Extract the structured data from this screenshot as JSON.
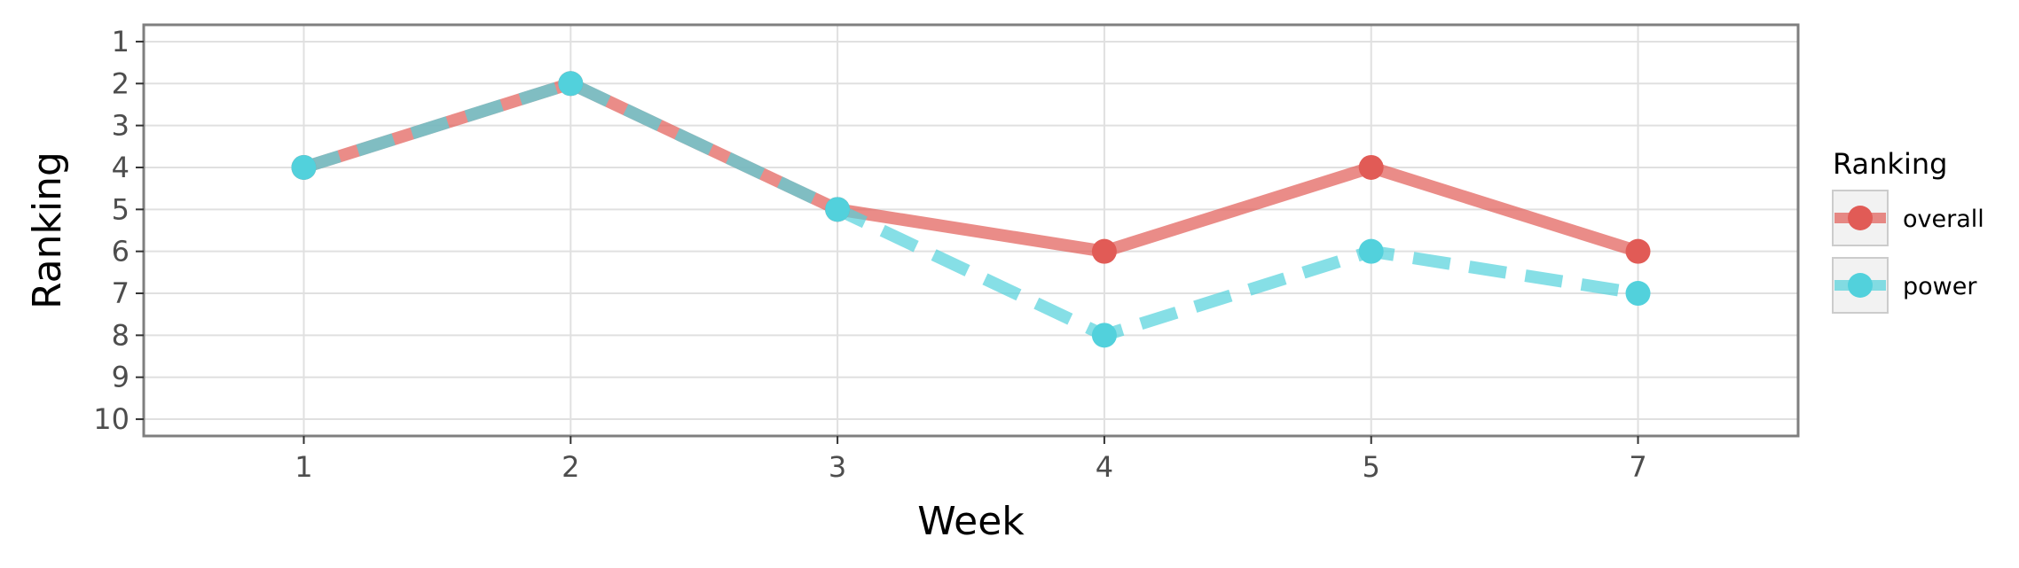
{
  "chart_data": {
    "type": "line",
    "title": "",
    "xlabel": "Week",
    "ylabel": "Ranking",
    "categories": [
      "1",
      "2",
      "3",
      "4",
      "5",
      "7"
    ],
    "y_ticks": [
      "1",
      "2",
      "3",
      "4",
      "5",
      "6",
      "7",
      "8",
      "9",
      "10"
    ],
    "ylim": [
      10.4,
      0.6
    ],
    "y_reversed": true,
    "grid": true,
    "legend": {
      "title": "Ranking",
      "position": "right"
    },
    "series": [
      {
        "name": "overall",
        "values": [
          4,
          2,
          5,
          6,
          4,
          6
        ],
        "color": "#e15b56",
        "line_style": "solid"
      },
      {
        "name": "power",
        "values": [
          4,
          2,
          5,
          8,
          6,
          7
        ],
        "color": "#52d1dc",
        "line_style": "dashed"
      }
    ]
  }
}
